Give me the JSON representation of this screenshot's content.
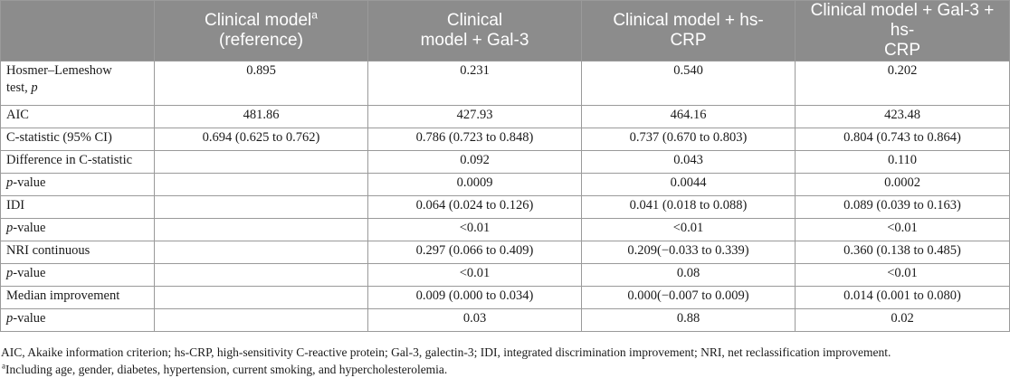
{
  "table": {
    "headers": [
      "",
      "Clinical model",
      "Clinical model + Gal-3",
      "Clinical model + hs-CRP",
      "Clinical model + Gal-3 + hs-CRP"
    ],
    "header_line1": [
      "",
      "Clinical model",
      "Clinical",
      "Clinical model + hs-",
      "Clinical model + Gal-3 + hs-"
    ],
    "header_line2": [
      "",
      "(reference)",
      "model + Gal-3",
      "CRP",
      "CRP"
    ],
    "header_superscript": "a",
    "rows": [
      {
        "label_a": "Hosmer–Lemeshow",
        "label_b": "test, ",
        "label_c": "p",
        "values": [
          "0.895",
          "0.231",
          "0.540",
          "0.202"
        ]
      },
      {
        "label": "AIC",
        "values": [
          "481.86",
          "427.93",
          "464.16",
          "423.48"
        ]
      },
      {
        "label": "C-statistic (95% CI)",
        "values": [
          "0.694 (0.625 to 0.762)",
          "0.786 (0.723 to 0.848)",
          "0.737 (0.670 to 0.803)",
          "0.804 (0.743 to 0.864)"
        ]
      },
      {
        "label": "Difference in C-statistic",
        "values": [
          "",
          "0.092",
          "0.043",
          "0.110"
        ]
      },
      {
        "label_i": "p",
        "label_rest": "-value",
        "values": [
          "",
          "0.0009",
          "0.0044",
          "0.0002"
        ]
      },
      {
        "label": "IDI",
        "values": [
          "",
          "0.064 (0.024 to 0.126)",
          "0.041 (0.018 to 0.088)",
          "0.089 (0.039 to 0.163)"
        ]
      },
      {
        "label_i": "p",
        "label_rest": "-value",
        "values": [
          "",
          "<0.01",
          "<0.01",
          "<0.01"
        ]
      },
      {
        "label": "NRI continuous",
        "values": [
          "",
          "0.297 (0.066 to 0.409)",
          "0.209(−0.033 to 0.339)",
          "0.360 (0.138 to 0.485)"
        ]
      },
      {
        "label_i": "p",
        "label_rest": "-value",
        "values": [
          "",
          "<0.01",
          "0.08",
          "<0.01"
        ]
      },
      {
        "label": "Median improvement",
        "values": [
          "",
          "0.009 (0.000 to 0.034)",
          "0.000(−0.007 to 0.009)",
          "0.014 (0.001 to 0.080)"
        ]
      },
      {
        "label_i": "p",
        "label_rest": "-value",
        "values": [
          "",
          "0.03",
          "0.88",
          "0.02"
        ]
      }
    ]
  },
  "footnotes": {
    "abbreviations": "AIC, Akaike information criterion; hs-CRP, high-sensitivity C-reactive protein; Gal-3, galectin-3; IDI, integrated discrimination improvement; NRI, net reclassification improvement.",
    "marker": "a",
    "note_a": "Including age, gender, diabetes, hypertension, current smoking, and hypercholesterolemia."
  }
}
